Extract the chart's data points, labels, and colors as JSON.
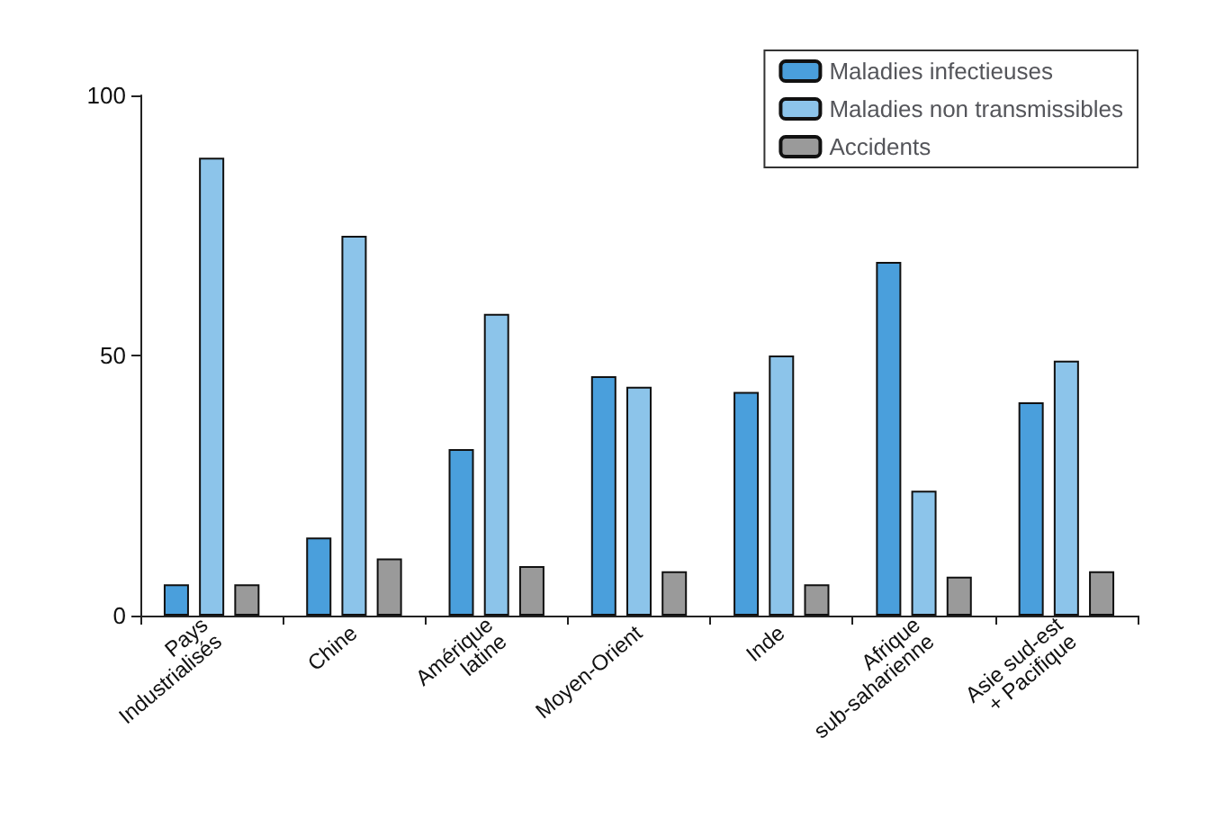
{
  "chart_data": {
    "type": "bar",
    "categories": [
      "Pays Industrialisés",
      "Chine",
      "Amérique latine",
      "Moyen-Orient",
      "Inde",
      "Afrique sub-saharienne",
      "Asie sud-est + Pacifique"
    ],
    "series": [
      {
        "name": "Maladies infectieuses",
        "color": "#4a9fdc",
        "values": [
          6,
          15,
          32,
          46,
          43,
          68,
          41
        ]
      },
      {
        "name": "Maladies non transmissibles",
        "color": "#8cc4ea",
        "values": [
          88,
          73,
          58,
          44,
          50,
          24,
          49
        ]
      },
      {
        "name": "Accidents",
        "color": "#9a9a9a",
        "values": [
          6,
          11,
          9.5,
          8.5,
          6,
          7.5,
          8.5
        ]
      }
    ],
    "ylim": [
      0,
      100
    ],
    "yticks": [
      0,
      50,
      100
    ],
    "grid": false,
    "legend": "top right"
  }
}
